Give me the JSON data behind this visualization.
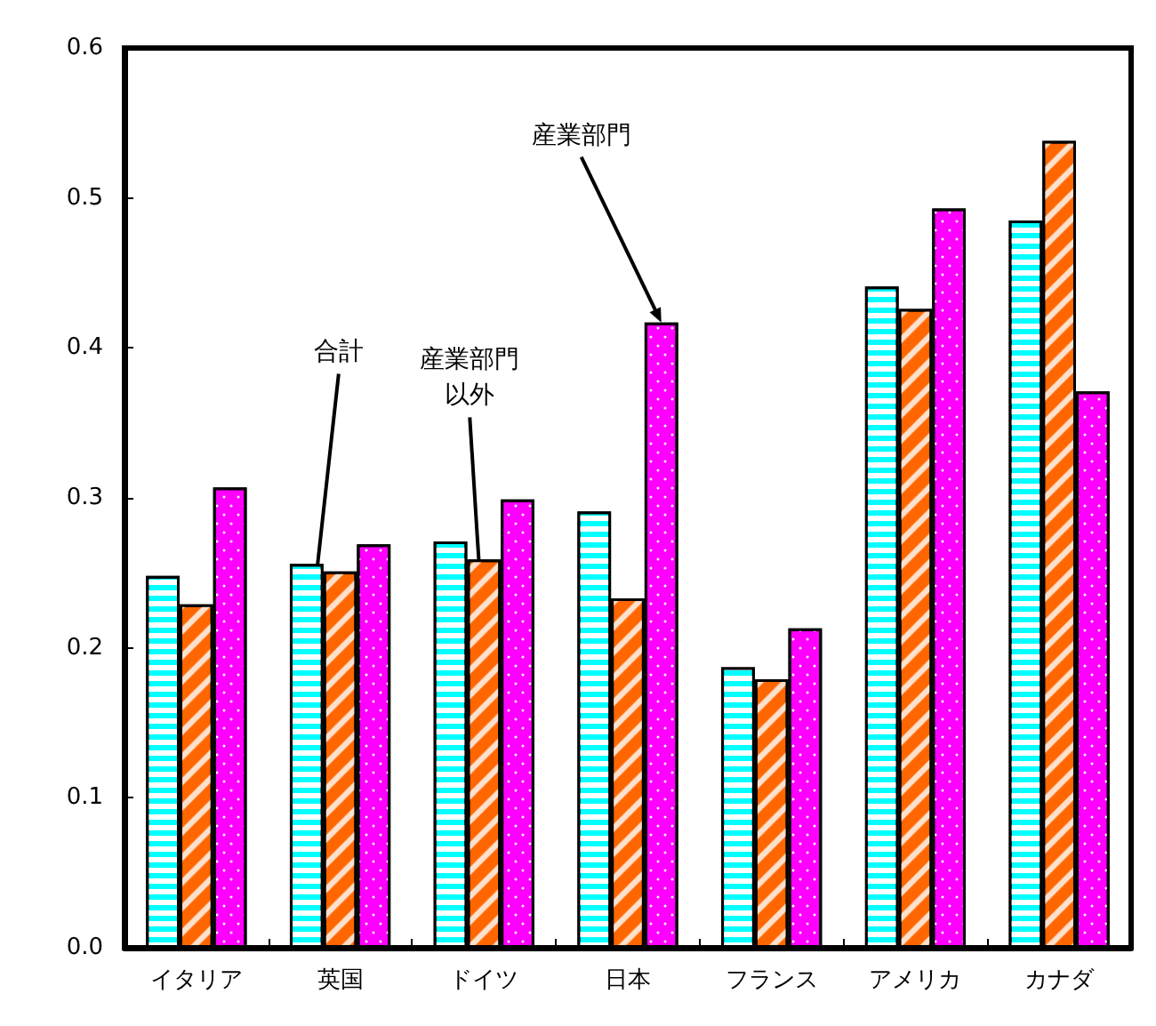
{
  "chart_data": {
    "type": "bar",
    "categories": [
      "イタリア",
      "英国",
      "ドイツ",
      "日本",
      "フランス",
      "アメリカ",
      "カナダ"
    ],
    "series": [
      {
        "name": "合計",
        "color": "#00ffff",
        "values": [
          0.248,
          0.256,
          0.271,
          0.291,
          0.187,
          0.441,
          0.485
        ]
      },
      {
        "name": "産業部門以外",
        "color": "#ff6600",
        "values": [
          0.229,
          0.251,
          0.259,
          0.233,
          0.179,
          0.426,
          0.538
        ]
      },
      {
        "name": "産業部門",
        "color": "#ff00ff",
        "values": [
          0.307,
          0.269,
          0.299,
          0.417,
          0.213,
          0.493,
          0.371
        ]
      }
    ],
    "ylim": [
      0,
      0.6
    ],
    "yticks": [
      {
        "value": 0,
        "label": "0.0"
      },
      {
        "value": 0.1,
        "label": "0.1"
      },
      {
        "value": 0.2,
        "label": "0.2"
      },
      {
        "value": 0.3,
        "label": "0.3"
      },
      {
        "value": 0.4,
        "label": "0.4"
      },
      {
        "value": 0.5,
        "label": "0.5"
      },
      {
        "value": 0.6,
        "label": "0.6"
      }
    ],
    "grid": false
  }
}
